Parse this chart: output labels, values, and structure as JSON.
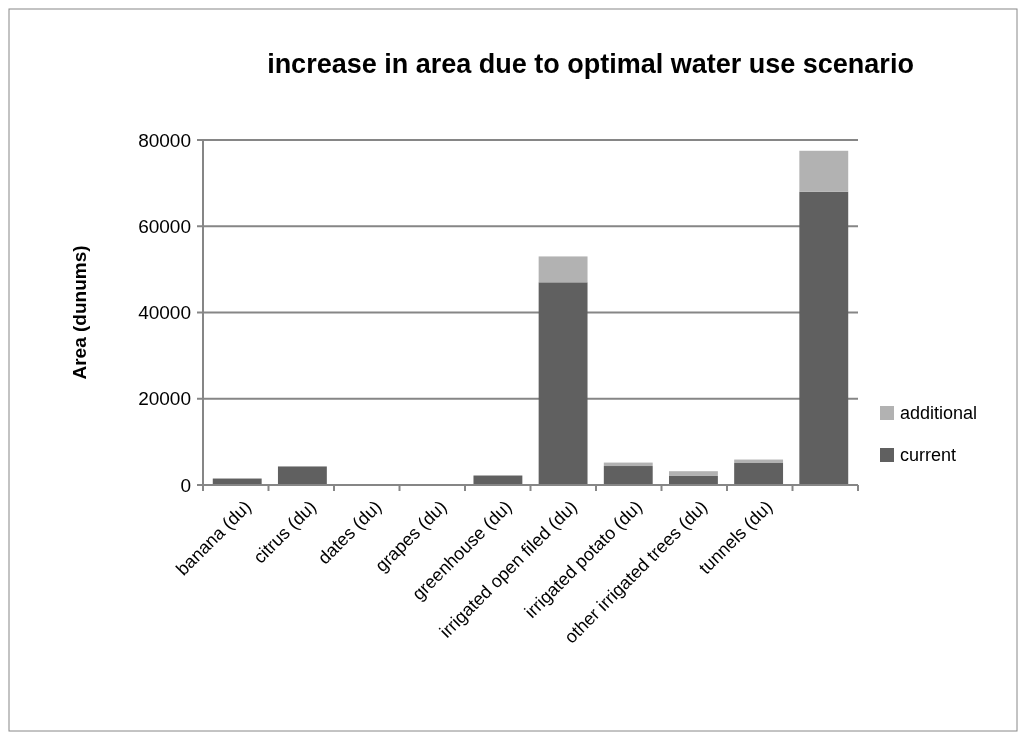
{
  "chart_data": {
    "type": "bar",
    "stacked": true,
    "title": "increase in area due to optimal water use scenario",
    "ylabel": "Area (dunums)",
    "categories": [
      "banana (du)",
      "citrus (du)",
      "dates (du)",
      "grapes (du)",
      "greenhouse (du)",
      "irrigated open filed (du)",
      "irrigated potato (du)",
      "other irrigated trees (du)",
      "tunnels (du)",
      null
    ],
    "series": [
      {
        "name": "current",
        "color": "#606060",
        "values": [
          1500,
          4300,
          200,
          200,
          2200,
          47000,
          4400,
          2100,
          5100,
          68000
        ]
      },
      {
        "name": "additional",
        "color": "#b2b2b2",
        "values": [
          0,
          0,
          0,
          0,
          0,
          6000,
          800,
          1100,
          800,
          9500
        ]
      }
    ],
    "ylim": [
      0,
      80000
    ],
    "yticks": [
      0,
      20000,
      40000,
      60000,
      80000
    ],
    "grid": "y",
    "legend": "right"
  }
}
